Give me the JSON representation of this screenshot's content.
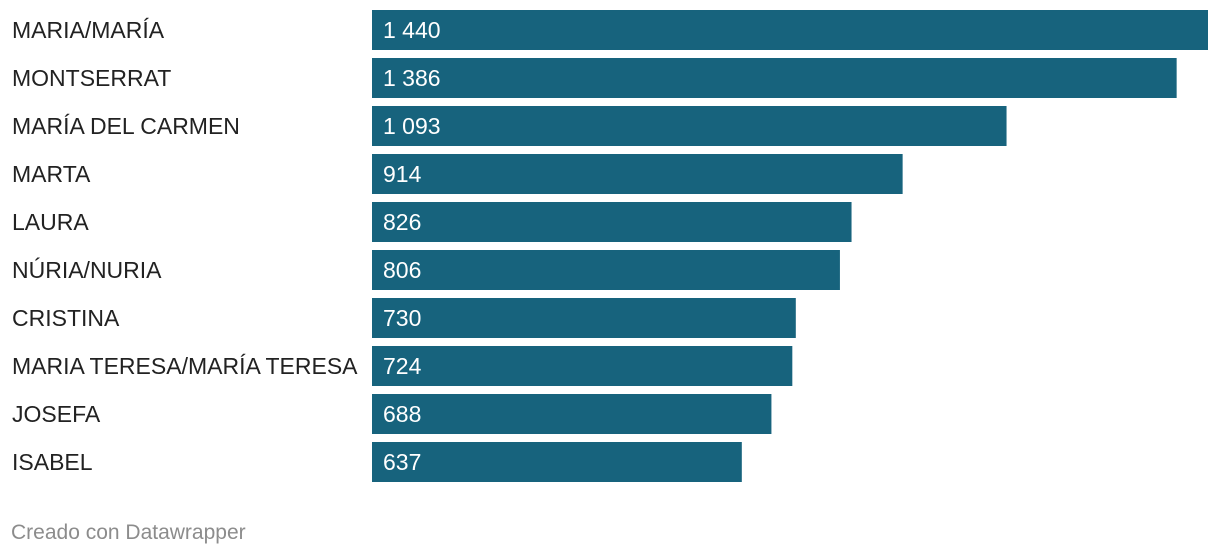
{
  "chart_data": {
    "type": "bar",
    "orientation": "horizontal",
    "categories": [
      "MARIA/MARÍA",
      "MONTSERRAT",
      "MARÍA DEL CARMEN",
      "MARTA",
      "LAURA",
      "NÚRIA/NURIA",
      "CRISTINA",
      "MARIA TERESA/MARÍA TERESA",
      "JOSEFA",
      "ISABEL"
    ],
    "values": [
      1440,
      1386,
      1093,
      914,
      826,
      806,
      730,
      724,
      688,
      637
    ],
    "value_labels": [
      "1 440",
      "1 386",
      "1 093",
      "914",
      "826",
      "806",
      "730",
      "724",
      "688",
      "637"
    ],
    "bar_color": "#17637d",
    "xlim": [
      0,
      1440
    ],
    "grid": false,
    "legend": "none"
  },
  "footer": {
    "credit": "Creado con Datawrapper"
  }
}
